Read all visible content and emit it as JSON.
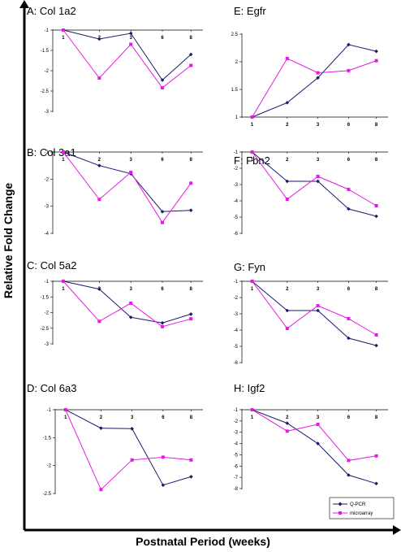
{
  "figure": {
    "ylabel": "Relative Fold Change",
    "xlabel": "Postnatal Period (weeks)",
    "colors": {
      "qpcr": "#1a1a6e",
      "microarray": "#e619e6",
      "axis": "#000000"
    }
  },
  "legend": [
    {
      "name": "Q-PCR",
      "color": "#1a1a6e",
      "marker": "diamond"
    },
    {
      "name": "microarray",
      "color": "#e619e6",
      "marker": "square"
    }
  ],
  "chart_data": [
    {
      "id": "A",
      "type": "line",
      "title": "A: Col 1a2",
      "categories": [
        "1",
        "2",
        "3",
        "6",
        "8"
      ],
      "ylim": [
        -3,
        -1
      ],
      "yticks": [
        -1,
        -1.5,
        -2,
        -2.5,
        -3
      ],
      "series": [
        {
          "name": "Q-PCR",
          "values": [
            -1,
            -1.22,
            -1.08,
            -2.23,
            -1.6
          ]
        },
        {
          "name": "microarray",
          "values": [
            -1,
            -2.18,
            -1.35,
            -2.42,
            -1.87
          ]
        }
      ]
    },
    {
      "id": "B",
      "type": "line",
      "title": "B: Col 3a1",
      "categories": [
        "1",
        "2",
        "3",
        "6",
        "8"
      ],
      "ylim": [
        -4,
        -1
      ],
      "yticks": [
        -1,
        -2,
        -3,
        -4
      ],
      "series": [
        {
          "name": "Q-PCR",
          "values": [
            -1,
            -1.5,
            -1.8,
            -3.2,
            -3.15
          ]
        },
        {
          "name": "microarray",
          "values": [
            -1,
            -2.75,
            -1.75,
            -3.6,
            -2.15
          ]
        }
      ]
    },
    {
      "id": "C",
      "type": "line",
      "title": "C: Col 5a2",
      "categories": [
        "1",
        "2",
        "3",
        "6",
        "8"
      ],
      "ylim": [
        -3,
        -1
      ],
      "yticks": [
        -1,
        -1.5,
        -2,
        -2.5,
        -3
      ],
      "series": [
        {
          "name": "Q-PCR",
          "values": [
            -1,
            -1.25,
            -2.15,
            -2.33,
            -2.05
          ]
        },
        {
          "name": "microarray",
          "values": [
            -1,
            -2.28,
            -1.7,
            -2.45,
            -2.2
          ]
        }
      ]
    },
    {
      "id": "D",
      "type": "line",
      "title": "D: Col 6a3",
      "categories": [
        "1",
        "2",
        "3",
        "6",
        "8"
      ],
      "ylim": [
        -2.5,
        -1
      ],
      "yticks": [
        -1,
        -1.5,
        -2,
        -2.5
      ],
      "series": [
        {
          "name": "Q-PCR",
          "values": [
            -1,
            -1.33,
            -1.34,
            -2.35,
            -2.2
          ]
        },
        {
          "name": "microarray",
          "values": [
            -1,
            -2.43,
            -1.9,
            -1.85,
            -1.9
          ]
        }
      ]
    },
    {
      "id": "E",
      "type": "line",
      "title": "E: Egfr",
      "categories": [
        "1",
        "2",
        "3",
        "6",
        "8"
      ],
      "ylim": [
        1,
        2.5
      ],
      "yticks": [
        2.5,
        2,
        1.5,
        1
      ],
      "series": [
        {
          "name": "Q-PCR",
          "values": [
            1,
            1.26,
            1.71,
            2.31,
            2.19
          ]
        },
        {
          "name": "microarray",
          "values": [
            1,
            2.06,
            1.8,
            1.84,
            2.02
          ]
        }
      ]
    },
    {
      "id": "F",
      "type": "line",
      "title": "F: Fbn2",
      "categories": [
        "1",
        "2",
        "3",
        "6",
        "8"
      ],
      "ylim": [
        -6,
        -1
      ],
      "yticks": [
        -1,
        -2,
        -3,
        -4,
        -5,
        -6
      ],
      "series": [
        {
          "name": "Q-PCR",
          "values": [
            -1,
            -2.8,
            -2.8,
            -4.5,
            -4.95
          ]
        },
        {
          "name": "microarray",
          "values": [
            -1,
            -3.9,
            -2.5,
            -3.3,
            -4.3
          ]
        }
      ]
    },
    {
      "id": "G",
      "type": "line",
      "title": "G: Fyn",
      "categories": [
        "1",
        "2",
        "3",
        "6",
        "8"
      ],
      "ylim": [
        -6,
        -1
      ],
      "yticks": [
        -1,
        -2,
        -3,
        -4,
        -5,
        -6
      ],
      "series": [
        {
          "name": "Q-PCR",
          "values": [
            -1,
            -2.8,
            -2.8,
            -4.5,
            -4.95
          ]
        },
        {
          "name": "microarray",
          "values": [
            -1,
            -3.9,
            -2.5,
            -3.3,
            -4.3
          ]
        }
      ]
    },
    {
      "id": "H",
      "type": "line",
      "title": "H: Igf2",
      "categories": [
        "1",
        "2",
        "3",
        "6",
        "8"
      ],
      "ylim": [
        -8,
        -1
      ],
      "yticks": [
        -1,
        -2,
        -3,
        -4,
        -5,
        -6,
        -7,
        -8
      ],
      "series": [
        {
          "name": "Q-PCR",
          "values": [
            -1,
            -2.2,
            -4,
            -6.8,
            -7.55
          ]
        },
        {
          "name": "microarray",
          "values": [
            -1,
            -2.9,
            -2.3,
            -5.5,
            -5.1
          ]
        }
      ]
    }
  ]
}
